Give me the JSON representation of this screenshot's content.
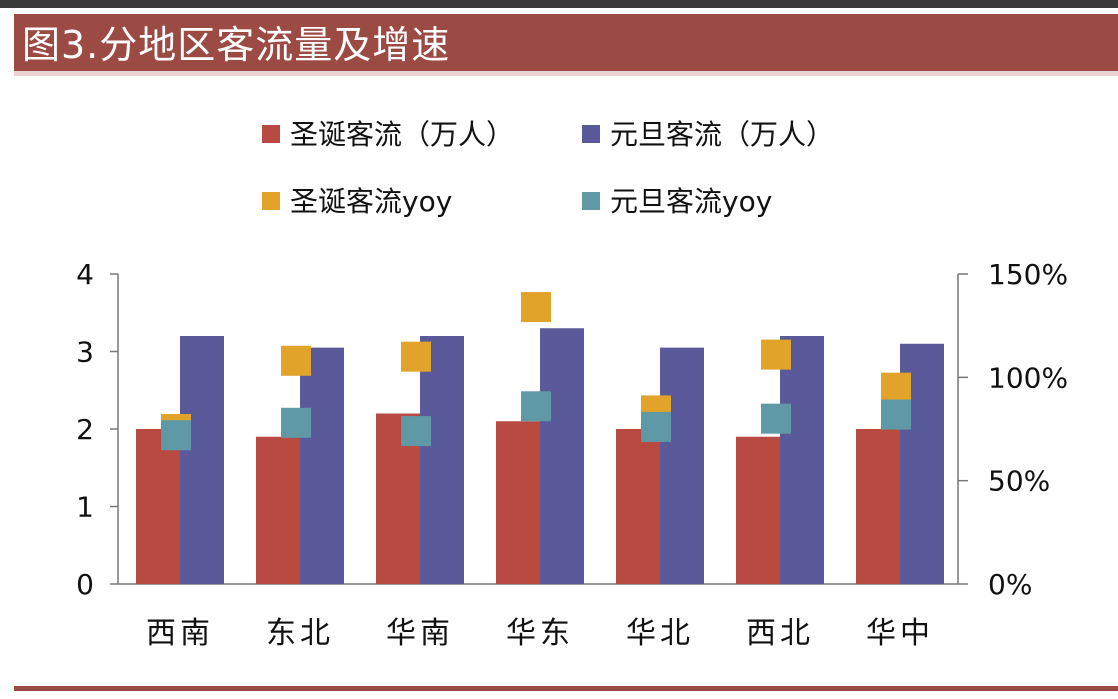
{
  "header": {
    "title": "图3.分地区客流量及增速"
  },
  "chart_data": {
    "type": "bar",
    "title": "图3.分地区客流量及增速",
    "categories": [
      "西南",
      "东北",
      "华南",
      "华东",
      "华北",
      "西北",
      "华中"
    ],
    "series": [
      {
        "name": "圣诞客流（万人）",
        "kind": "bar",
        "axis": "left",
        "color": "#b94a42",
        "values": [
          2.0,
          1.9,
          2.2,
          2.1,
          2.0,
          1.9,
          2.0
        ]
      },
      {
        "name": "元旦客流（万人）",
        "kind": "bar",
        "axis": "left",
        "color": "#5a5a9a",
        "values": [
          3.2,
          3.05,
          3.2,
          3.3,
          3.05,
          3.2,
          3.1
        ]
      },
      {
        "name": "圣诞客流yoy",
        "kind": "marker",
        "axis": "right",
        "color": "#e2a32a",
        "values": [
          0.75,
          1.08,
          1.1,
          1.34,
          0.84,
          1.11,
          0.95
        ]
      },
      {
        "name": "元旦客流yoy",
        "kind": "marker",
        "axis": "right",
        "color": "#5f99a6",
        "values": [
          0.72,
          0.78,
          0.74,
          0.86,
          0.76,
          0.8,
          0.82
        ]
      }
    ],
    "y_left": {
      "min": 0,
      "max": 4,
      "ticks": [
        0,
        1,
        2,
        3,
        4
      ],
      "tick_labels": [
        "0",
        "1",
        "2",
        "3",
        "4"
      ]
    },
    "y_right": {
      "min": 0,
      "max": 1.5,
      "ticks": [
        0,
        0.5,
        1.0,
        1.5
      ],
      "tick_labels": [
        "0%",
        "50%",
        "100%",
        "150%"
      ]
    },
    "grid": false,
    "legend_position": "top"
  }
}
